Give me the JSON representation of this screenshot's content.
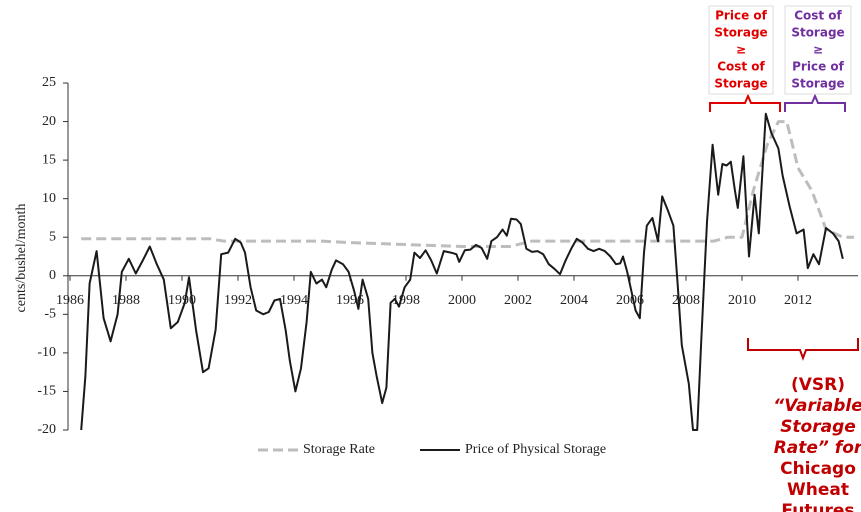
{
  "chart_data": {
    "type": "line",
    "y_label": "cents/bushel/month",
    "xlim": [
      1986,
      2014
    ],
    "xticks": [
      1986,
      1988,
      1990,
      1992,
      1994,
      1996,
      1998,
      2000,
      2002,
      2004,
      2006,
      2008,
      2010,
      2012
    ],
    "ylim": [
      -20,
      25
    ],
    "yticks": [
      -20,
      -15,
      -10,
      -5,
      0,
      5,
      10,
      15,
      20,
      25
    ],
    "series": [
      {
        "name": "Storage Rate",
        "color": "#bdbdbd",
        "dashed": true,
        "x": [
          1986.4,
          1991,
          1991.5,
          1995,
          1996,
          2000,
          2001.7,
          2002.5,
          2009,
          2009.5,
          2010,
          2010.4,
          2010.9,
          2011.3,
          2011.6,
          2012,
          2012.5,
          2013,
          2013.6,
          2014
        ],
        "values": [
          4.8,
          4.8,
          4.5,
          4.5,
          4.3,
          3.8,
          3.8,
          4.5,
          4.5,
          5,
          5,
          11,
          17,
          20,
          20,
          14,
          11,
          6,
          5,
          5
        ]
      },
      {
        "name": "Price of Physical Storage",
        "color": "#1a1a1a",
        "dashed": false,
        "x": [
          1986.4,
          1986.55,
          1986.7,
          1986.95,
          1987.2,
          1987.45,
          1987.7,
          1987.85,
          1988.1,
          1988.35,
          1988.6,
          1988.85,
          1989.1,
          1989.35,
          1989.6,
          1989.85,
          1990.1,
          1990.25,
          1990.5,
          1990.75,
          1990.95,
          1991.2,
          1991.4,
          1991.65,
          1991.9,
          1992.1,
          1992.25,
          1992.45,
          1992.65,
          1992.9,
          1993.1,
          1993.3,
          1993.5,
          1993.7,
          1993.85,
          1994.05,
          1994.25,
          1994.45,
          1994.6,
          1994.8,
          1995,
          1995.15,
          1995.35,
          1995.5,
          1995.75,
          1995.95,
          1996.15,
          1996.3,
          1996.45,
          1996.65,
          1996.8,
          1996.95,
          1997.15,
          1997.3,
          1997.45,
          1997.6,
          1997.75,
          1997.95,
          1998.15,
          1998.3,
          1998.5,
          1998.7,
          1998.9,
          1999.1,
          1999.35,
          1999.6,
          1999.8,
          1999.9,
          2000.1,
          2000.3,
          2000.5,
          2000.7,
          2000.9,
          2001.05,
          2001.25,
          2001.45,
          2001.6,
          2001.75,
          2001.95,
          2002.1,
          2002.3,
          2002.5,
          2002.7,
          2002.9,
          2003.1,
          2003.3,
          2003.5,
          2003.7,
          2003.9,
          2004.1,
          2004.3,
          2004.5,
          2004.7,
          2004.9,
          2005.1,
          2005.3,
          2005.5,
          2005.65,
          2005.75,
          2005.9,
          2006.05,
          2006.2,
          2006.35,
          2006.5,
          2006.6,
          2006.8,
          2007,
          2007.15,
          2007.35,
          2007.55,
          2007.7,
          2007.85,
          2008.1,
          2008.25,
          2008.4,
          2008.55,
          2008.75,
          2008.95,
          2009.15,
          2009.3,
          2009.45,
          2009.6,
          2009.75,
          2009.85,
          2010.05,
          2010.25,
          2010.45,
          2010.6,
          2010.85,
          2011.05,
          2011.3,
          2011.45,
          2011.7,
          2011.95,
          2012.2,
          2012.35,
          2012.55,
          2012.75,
          2013,
          2013.25,
          2013.45,
          2013.6
        ],
        "values": [
          -20,
          -13,
          -1,
          3.2,
          -5.5,
          -8.5,
          -5,
          0.5,
          2.2,
          0.3,
          2,
          3.8,
          1.5,
          -0.5,
          -6.8,
          -6,
          -3.5,
          -0.2,
          -7,
          -12.5,
          -12,
          -7,
          2.8,
          3,
          4.8,
          4.3,
          3,
          -1.5,
          -4.5,
          -5,
          -4.7,
          -3.2,
          -3,
          -7,
          -11,
          -15,
          -12,
          -6,
          0.5,
          -1,
          -0.5,
          -1.5,
          0.8,
          2,
          1.5,
          0.5,
          -2,
          -4.3,
          -0.5,
          -3,
          -10,
          -13,
          -16.5,
          -14.5,
          -3.5,
          -3,
          -4,
          -1.5,
          -0.5,
          3,
          2.3,
          3.3,
          2,
          0.3,
          3.2,
          3,
          2.8,
          1.8,
          3.3,
          3.4,
          4,
          3.6,
          2.2,
          4.5,
          5,
          6,
          5.2,
          7.4,
          7.3,
          6.7,
          3.5,
          3.1,
          3.2,
          2.8,
          1.5,
          0.9,
          0.2,
          2,
          3.5,
          4.8,
          4.3,
          3.5,
          3.2,
          3.5,
          3.2,
          2.5,
          1.5,
          1.6,
          2.5,
          0.5,
          -2,
          -4.5,
          -5.5,
          3,
          6.5,
          7.5,
          4.5,
          10.3,
          8.5,
          6.5,
          -1,
          -9,
          -14,
          -20,
          -20,
          -8,
          7,
          17,
          10.5,
          14.5,
          14.3,
          14.8,
          11,
          8.8,
          15.5,
          2.5,
          10.5,
          5.5,
          21,
          18.5,
          16.5,
          13,
          9,
          5.5,
          6,
          1,
          2.8,
          1.5,
          6.2,
          5.5,
          4.5,
          2.2
        ]
      }
    ],
    "annotations": [
      {
        "lines": [
          "Price of",
          "Storage",
          "≥",
          "Cost of",
          "Storage"
        ],
        "color": "#e00000"
      },
      {
        "lines": [
          "Cost of",
          "Storage",
          "≥",
          "Price of",
          "Storage"
        ],
        "color": "#7030a0"
      },
      {
        "lines": [
          "(VSR)",
          "“Variable",
          "Storage",
          "Rate” for",
          "Chicago",
          "Wheat",
          "Futures"
        ],
        "color": "#c00000"
      }
    ]
  }
}
